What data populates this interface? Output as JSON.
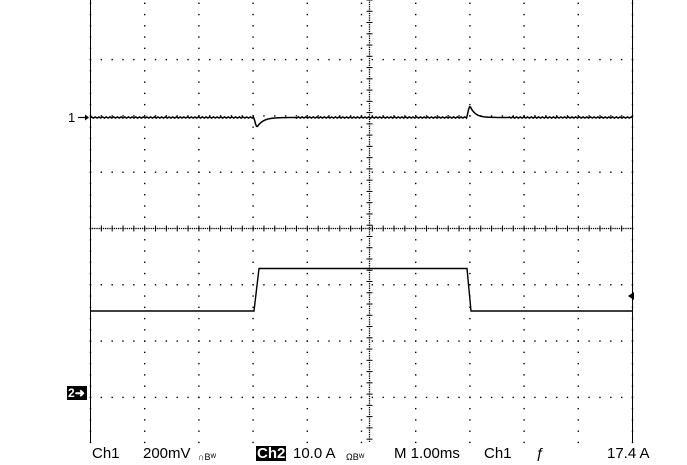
{
  "channels": {
    "ch1_marker": "1",
    "ch2_marker": "2"
  },
  "status": {
    "ch1_label": "Ch1",
    "ch1_scale": "200mV",
    "ch1_coupling_suffix": "∩Bᵂ",
    "ch2_label": "Ch2",
    "ch2_scale": "10.0 A",
    "ch2_coupling_suffix": "ΩBᵂ",
    "timebase": "M 1.00ms",
    "trigger_source": "Ch1",
    "trigger_slope": "ƒ",
    "trigger_level": "17.4 A"
  },
  "colors": {
    "background": "#ffffff",
    "trace": "#000000",
    "grid": "#000000",
    "frame": "#000000"
  },
  "waveform": {
    "ch1": {
      "shape": "flat line with negative spike at pulse rising edge and positive spike at falling edge",
      "baseline_div": 0
    },
    "ch2": {
      "shape": "rectangular pulse",
      "pulse_start_div": 3.35,
      "pulse_end_div": 7.0
    }
  }
}
